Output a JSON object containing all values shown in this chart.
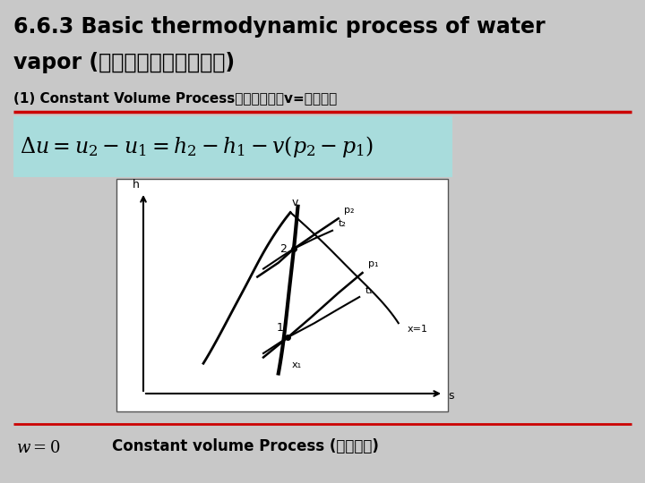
{
  "title_line1": "6.6.3 Basic thermodynamic process of water",
  "title_line2": "vapor (水蒸气的基本热力过程)",
  "subtitle": "(1) Constant Volume Process（定容过程，v=定值。）",
  "formula_latex": "\\Delta u = u_2 - u_1 = h_2 - h_1 - v(p_2 - p_1)",
  "bottom_formula_latex": "w = 0",
  "bottom_text": "Constant volume Process (定容过程)",
  "bg_color": "#c8c8c8",
  "title_color": "#000000",
  "subtitle_underline_color": "#cc0000",
  "formula_bg": "#a0dede",
  "slide_bg": "#c8c8c8"
}
